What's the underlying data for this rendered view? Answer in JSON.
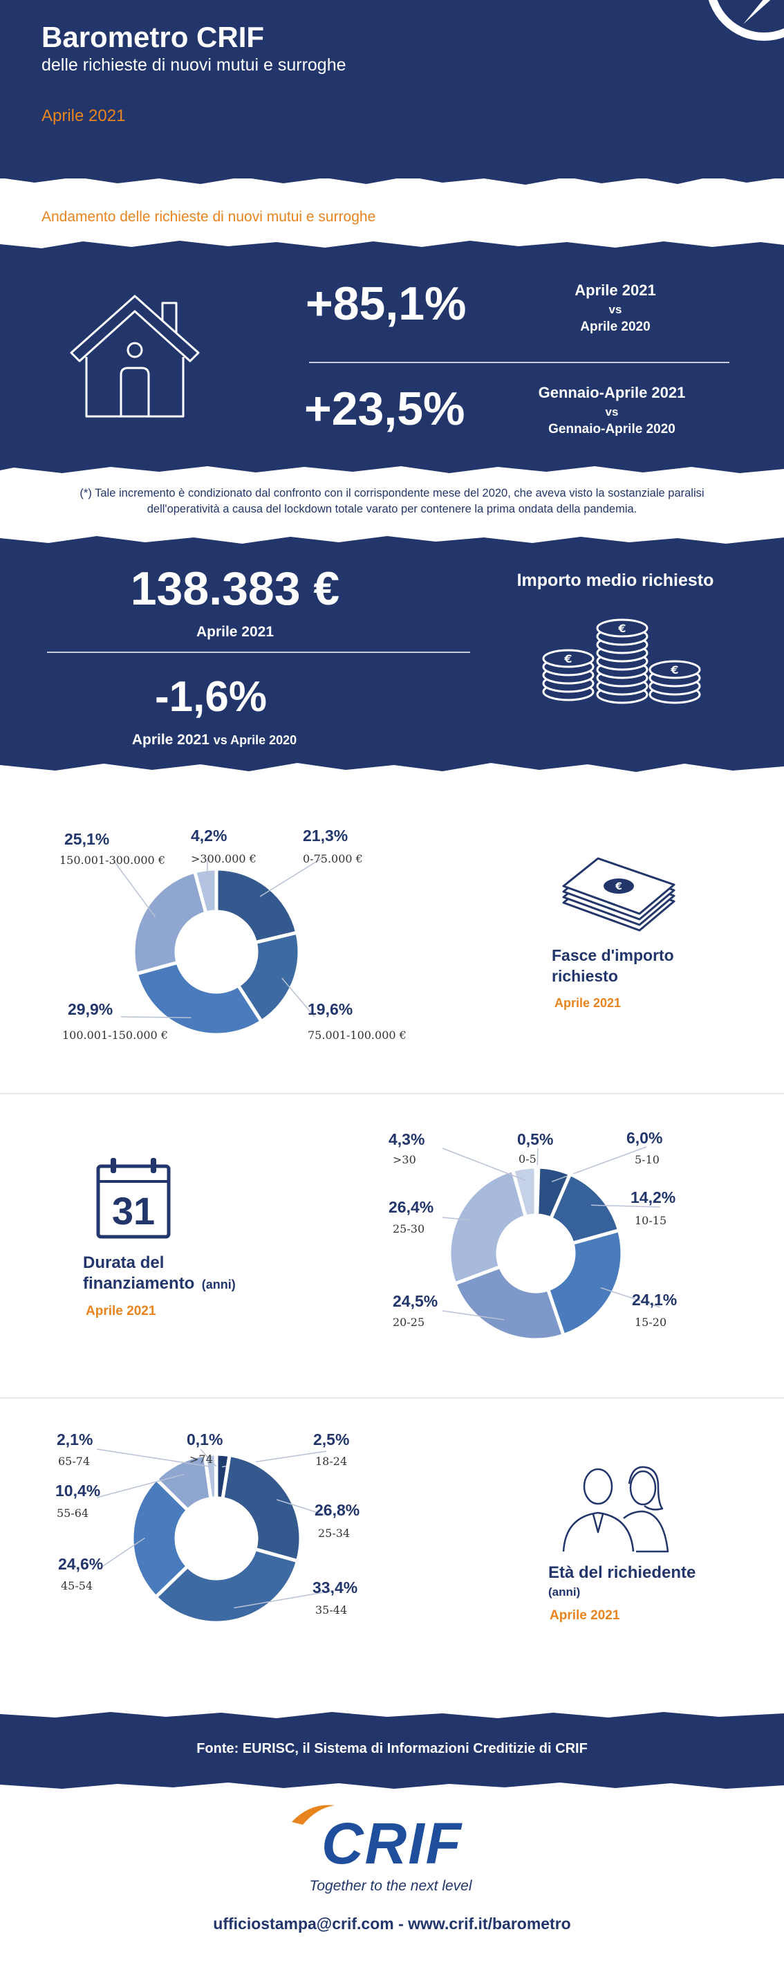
{
  "header": {
    "title": "Barometro CRIF",
    "subtitle": "delle richieste di nuovi mutui e surroghe",
    "period": "Aprile 2021"
  },
  "section_trend": {
    "title": "Andamento delle richieste di nuovi mutui e surroghe",
    "stat1": {
      "value": "+85,1%",
      "line1": "Aprile 2021",
      "line2": "vs",
      "line3": "Aprile 2020"
    },
    "stat2": {
      "value": "+23,5%",
      "line1": "Gennaio-Aprile 2021",
      "line2": "vs",
      "line3": "Gennaio-Aprile 2020"
    },
    "note_line1": "(*) Tale incremento è condizionato dal confronto con il corrispondente mese del 2020, che aveva visto la sostanziale paralisi",
    "note_line2": "dell'operatività a causa del lockdown totale varato per contenere la prima ondata della pandemia."
  },
  "section_amount": {
    "value": "138.383 €",
    "value_period": "Aprile 2021",
    "change": "-1,6%",
    "change_period_a": "Aprile 2021",
    "change_period_b": "vs Aprile 2020",
    "title": "Importo medio richiesto"
  },
  "section_fasce": {
    "title_line1": "Fasce d'importo",
    "title_line2": "richiesto",
    "period": "Aprile 2021"
  },
  "section_durata": {
    "title_line1": "Durata del",
    "title_line2": "finanziamento",
    "title_unit": "(anni)",
    "period": "Aprile 2021",
    "calendar_day": "31"
  },
  "section_eta": {
    "title": "Età del richiedente",
    "unit": "(anni)",
    "period": "Aprile 2021"
  },
  "footer": {
    "source": "Fonte: EURISC, il Sistema di Informazioni Creditizie di CRIF",
    "logo_text": "CRIF",
    "tagline": "Together to the next level",
    "contact": "ufficiostampa@crif.com  -  www.crif.it/barometro"
  },
  "colors": {
    "navy": "#22366b",
    "orange": "#e8841e",
    "white": "#ffffff",
    "logo_blue": "#1f4f9c"
  },
  "chart_data": [
    {
      "type": "pie",
      "title": "Fasce d'importo richiesto",
      "categories": [
        "0-75.000 €",
        "75.001-100.000  €",
        "100.001-150.000 €",
        "150.001-300.000 €",
        ">300.000 €"
      ],
      "values": [
        21.3,
        19.6,
        29.9,
        25.1,
        4.2
      ],
      "labels": [
        "21,3%",
        "19,6%",
        "29,9%",
        "25,1%",
        "4,2%"
      ],
      "colors": [
        "#33598f",
        "#3e6aa3",
        "#4a7bbd",
        "#8ea6d0",
        "#b4c3df"
      ]
    },
    {
      "type": "pie",
      "title": "Durata del finanziamento (anni)",
      "categories": [
        "0-5",
        "5-10",
        "10-15",
        "15-20",
        "20-25",
        "25-30",
        ">30"
      ],
      "values": [
        0.5,
        6.0,
        14.2,
        24.1,
        24.5,
        26.4,
        4.3
      ],
      "labels": [
        "0,5%",
        "6,0%",
        "14,2%",
        "24,1%",
        "24,5%",
        "26,4%",
        "4,3%"
      ],
      "colors": [
        "#1e3d6e",
        "#2a4f85",
        "#36619b",
        "#4a7bbd",
        "#7d98c9",
        "#a8badc",
        "#c5d1e6"
      ]
    },
    {
      "type": "pie",
      "title": "Età del richiedente (anni)",
      "categories": [
        "18-24",
        "25-34",
        "35-44",
        "45-54",
        "55-64",
        "65-74",
        ">74"
      ],
      "values": [
        2.5,
        26.8,
        33.4,
        24.6,
        10.4,
        2.1,
        0.1
      ],
      "labels": [
        "2,5%",
        "26,8%",
        "33,4%",
        "24,6%",
        "10,4%",
        "2,1%",
        "0,1%"
      ],
      "colors": [
        "#1e3d6e",
        "#33598f",
        "#3e6aa3",
        "#4a7bbd",
        "#8ea6d0",
        "#b4c3df",
        "#d6deec"
      ]
    }
  ]
}
